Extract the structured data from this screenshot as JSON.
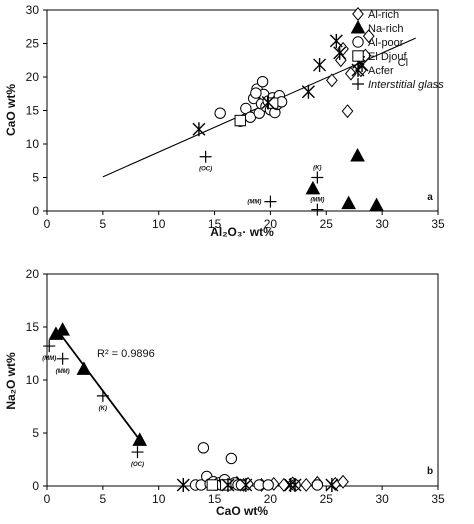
{
  "chart_data": [
    {
      "type": "scatter",
      "panel_label": "a",
      "xlabel": "Al₂O₃· wt%",
      "ylabel": "CaO wt%",
      "xlim": [
        0,
        35
      ],
      "ylim": [
        0,
        30
      ],
      "xticks": [
        0,
        5,
        10,
        15,
        20,
        25,
        30,
        35
      ],
      "yticks": [
        0,
        5,
        10,
        15,
        20,
        25,
        30
      ],
      "grid": false,
      "legend_position": "top-left",
      "legend": [
        {
          "label": "Al-rich",
          "marker": "diamond"
        },
        {
          "label": "Na-rich",
          "marker": "triangle"
        },
        {
          "label": "Al-poor",
          "marker": "circle"
        },
        {
          "label": "El Djouf",
          "marker": "square"
        },
        {
          "label": "Acfer",
          "marker": "asterisk"
        },
        {
          "label": "Interstitial glass",
          "marker": "plus"
        }
      ],
      "series": [
        {
          "name": "Al-rich",
          "marker": "diamond",
          "points": [
            [
              25.5,
              19.5
            ],
            [
              26.3,
              22.5
            ],
            [
              26.5,
              24.2
            ],
            [
              26.9,
              14.9
            ],
            [
              27.2,
              20.5
            ],
            [
              28.1,
              21.0
            ],
            [
              28.5,
              23.2
            ],
            [
              28.8,
              26.1
            ]
          ]
        },
        {
          "name": "Na-rich",
          "marker": "triangle",
          "points": [
            [
              23.8,
              3.3
            ],
            [
              27.0,
              1.1
            ],
            [
              27.8,
              8.2
            ],
            [
              29.5,
              0.8
            ]
          ]
        },
        {
          "name": "Al-poor",
          "marker": "circle",
          "points": [
            [
              15.5,
              14.6
            ],
            [
              17.3,
              13.4
            ],
            [
              17.8,
              15.3
            ],
            [
              18.2,
              14.0
            ],
            [
              18.5,
              16.8
            ],
            [
              18.8,
              18.2
            ],
            [
              19.0,
              14.6
            ],
            [
              19.2,
              16.0
            ],
            [
              19.4,
              17.4
            ],
            [
              19.6,
              15.6
            ],
            [
              19.8,
              16.4
            ],
            [
              20.0,
              15.1
            ],
            [
              20.2,
              16.9
            ],
            [
              20.4,
              14.7
            ],
            [
              20.6,
              15.9
            ],
            [
              20.8,
              17.2
            ],
            [
              21.0,
              16.3
            ],
            [
              19.3,
              19.3
            ],
            [
              18.7,
              17.6
            ]
          ]
        },
        {
          "name": "El Djouf",
          "marker": "square",
          "points": [
            [
              17.3,
              13.5
            ],
            [
              20.2,
              16.1
            ]
          ]
        },
        {
          "name": "Acfer",
          "marker": "asterisk",
          "points": [
            [
              13.6,
              12.2
            ],
            [
              19.8,
              16.2
            ],
            [
              23.4,
              17.8
            ],
            [
              24.4,
              21.8
            ],
            [
              25.9,
              25.4
            ],
            [
              26.2,
              23.6
            ],
            [
              27.9,
              22.2
            ],
            [
              28.2,
              21.8
            ]
          ]
        },
        {
          "name": "Interstitial glass",
          "marker": "plus",
          "points": [
            [
              14.2,
              8.1
            ],
            [
              20.0,
              1.4
            ],
            [
              24.2,
              5.0
            ],
            [
              24.2,
              0.2
            ]
          ]
        }
      ],
      "trendline": {
        "x": [
          5,
          33
        ],
        "y": [
          5.1,
          25.8
        ],
        "label": "Cl"
      },
      "point_annotations": [
        {
          "label": "(OC)",
          "x": 14.2,
          "y": 8.1,
          "position": "below"
        },
        {
          "label": "(MM)",
          "x": 20.0,
          "y": 1.4,
          "position": "left"
        },
        {
          "label": "(K)",
          "x": 24.2,
          "y": 5.0,
          "position": "above"
        },
        {
          "label": "(MM)",
          "x": 24.2,
          "y": 0.2,
          "position": "above"
        }
      ]
    },
    {
      "type": "scatter",
      "panel_label": "b",
      "xlabel": "CaO wt%",
      "ylabel": "Na₂O wt%",
      "xlim": [
        0,
        35
      ],
      "ylim": [
        0,
        20
      ],
      "xticks": [
        0,
        5,
        10,
        15,
        20,
        25,
        30,
        35
      ],
      "yticks": [
        0,
        5,
        10,
        15,
        20
      ],
      "grid": false,
      "series": [
        {
          "name": "Al-rich",
          "marker": "diamond",
          "points": [
            [
              16.2,
              0.15
            ],
            [
              17.0,
              0.3
            ],
            [
              17.6,
              0.1
            ],
            [
              18.0,
              0.2
            ],
            [
              19.2,
              0.1
            ],
            [
              20.3,
              0.2
            ],
            [
              21.2,
              0.1
            ],
            [
              22.0,
              0.25
            ],
            [
              23.2,
              0.1
            ],
            [
              24.2,
              0.3
            ],
            [
              25.8,
              0.2
            ],
            [
              26.5,
              0.4
            ]
          ]
        },
        {
          "name": "Na-rich",
          "marker": "triangle",
          "points": [
            [
              0.8,
              14.3
            ],
            [
              1.4,
              14.7
            ],
            [
              3.3,
              11.0
            ],
            [
              8.3,
              4.3
            ]
          ]
        },
        {
          "name": "Al-poor",
          "marker": "circle",
          "points": [
            [
              13.3,
              0.0
            ],
            [
              13.8,
              0.1
            ],
            [
              14.0,
              3.6
            ],
            [
              14.3,
              0.9
            ],
            [
              14.6,
              0.2
            ],
            [
              14.9,
              0.4
            ],
            [
              15.1,
              0.0
            ],
            [
              15.4,
              0.3
            ],
            [
              15.6,
              0.1
            ],
            [
              15.9,
              0.6
            ],
            [
              16.2,
              0.0
            ],
            [
              16.5,
              2.6
            ],
            [
              16.8,
              0.3
            ],
            [
              17.1,
              0.1
            ],
            [
              17.4,
              0.1
            ],
            [
              19.0,
              0.1
            ],
            [
              19.8,
              0.1
            ],
            [
              22.2,
              0.0
            ],
            [
              24.2,
              0.1
            ]
          ]
        },
        {
          "name": "El Djouf",
          "marker": "square",
          "points": [
            [
              14.8,
              0.0
            ],
            [
              16.0,
              0.1
            ]
          ]
        },
        {
          "name": "Acfer",
          "marker": "asterisk",
          "points": [
            [
              12.2,
              0.0
            ],
            [
              16.2,
              0.0
            ],
            [
              17.8,
              0.0
            ],
            [
              21.8,
              0.0
            ],
            [
              22.2,
              0.0
            ],
            [
              25.5,
              0.0
            ]
          ]
        },
        {
          "name": "Interstitial glass",
          "marker": "plus",
          "points": [
            [
              0.2,
              13.2
            ],
            [
              1.4,
              12.0
            ],
            [
              5.0,
              8.5
            ],
            [
              8.1,
              3.2
            ]
          ]
        }
      ],
      "trendline": {
        "x": [
          1.0,
          8.4
        ],
        "y": [
          14.6,
          4.2
        ],
        "label": "R² = 0.9896"
      },
      "point_annotations": [
        {
          "label": "(MM)",
          "x": 0.2,
          "y": 13.2,
          "position": "below"
        },
        {
          "label": "(MM)",
          "x": 1.4,
          "y": 12.0,
          "position": "below"
        },
        {
          "label": "(K)",
          "x": 5.0,
          "y": 8.5,
          "position": "below"
        },
        {
          "label": "(OC)",
          "x": 8.1,
          "y": 3.2,
          "position": "below"
        }
      ]
    }
  ]
}
